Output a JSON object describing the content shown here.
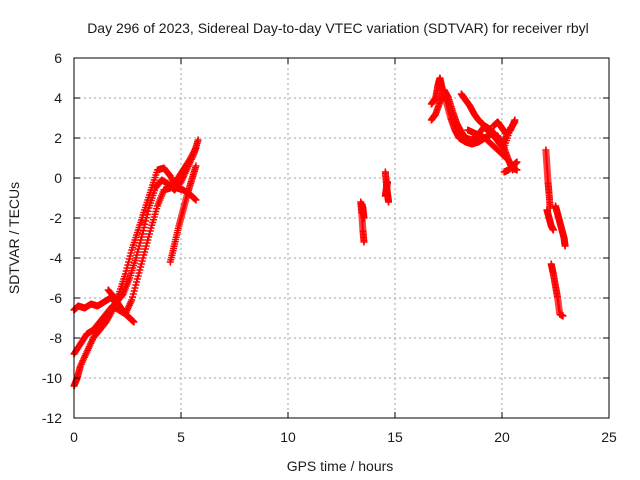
{
  "chart_data": {
    "type": "scatter",
    "title": "Day 296 of 2023, Sidereal Day-to-day VTEC variation (SDTVAR) for receiver rbyl",
    "xlabel": "GPS time / hours",
    "ylabel": "SDTVAR / TECUs",
    "xlim": [
      0,
      25
    ],
    "ylim": [
      -12,
      6
    ],
    "x_ticks": [
      "0",
      "5",
      "10",
      "15",
      "20",
      "25"
    ],
    "y_ticks": [
      "-12",
      "-10",
      "-8",
      "-6",
      "-4",
      "-2",
      "0",
      "2",
      "4",
      "6"
    ],
    "grid": true,
    "marker": "+",
    "series": [
      {
        "name": "SDTVAR",
        "color": "#ff0000",
        "tracks": [
          {
            "x": [
              0.0,
              0.2,
              0.5,
              0.8,
              1.1,
              1.4,
              1.7,
              2.0,
              2.3,
              2.6,
              2.9,
              3.2,
              3.5,
              3.8,
              4.1,
              4.4,
              4.7,
              5.0,
              5.3,
              5.6,
              5.8
            ],
            "y": [
              -6.6,
              -6.4,
              -6.5,
              -6.3,
              -6.4,
              -6.2,
              -6.0,
              -6.2,
              -5.8,
              -5.0,
              -4.0,
              -2.8,
              -1.5,
              -0.5,
              -0.1,
              -0.3,
              -0.6,
              -0.2,
              0.5,
              1.2,
              1.9
            ]
          },
          {
            "x": [
              0.0,
              0.15,
              0.3,
              0.6,
              0.9,
              1.2,
              1.5,
              1.8,
              2.1,
              2.4,
              2.7,
              3.0,
              3.3,
              3.6,
              3.9,
              4.2,
              4.5,
              4.8,
              5.1,
              5.4,
              5.7
            ],
            "y": [
              -10.4,
              -10.0,
              -9.4,
              -8.7,
              -8.0,
              -7.6,
              -7.2,
              -6.6,
              -5.8,
              -4.8,
              -3.6,
              -2.6,
              -1.6,
              -0.6,
              0.4,
              0.5,
              0.1,
              -0.5,
              -0.6,
              -0.8,
              -1.1
            ]
          },
          {
            "x": [
              0.0,
              0.3,
              0.6,
              0.9,
              1.2,
              1.5,
              1.8,
              2.1,
              2.4,
              2.7,
              3.0,
              3.3,
              3.6,
              3.9,
              4.2,
              4.5,
              4.8,
              5.1,
              5.4,
              5.7
            ],
            "y": [
              -8.8,
              -8.3,
              -7.8,
              -7.6,
              -7.2,
              -6.8,
              -6.4,
              -6.6,
              -6.8,
              -6.1,
              -4.9,
              -3.7,
              -2.5,
              -1.4,
              -0.6,
              -0.5,
              -0.1,
              0.4,
              0.9,
              1.5
            ]
          },
          {
            "x": [
              1.6,
              1.9,
              2.2,
              2.4,
              2.6,
              2.8
            ],
            "y": [
              -5.6,
              -6.0,
              -6.5,
              -6.8,
              -7.0,
              -7.2
            ]
          },
          {
            "x": [
              4.5,
              4.7,
              4.9,
              5.1,
              5.3,
              5.5,
              5.7
            ],
            "y": [
              -4.2,
              -3.3,
              -2.4,
              -1.6,
              -0.8,
              -0.1,
              0.6
            ]
          },
          {
            "x": [
              13.4,
              13.45,
              13.5,
              13.55
            ],
            "y": [
              -1.2,
              -1.8,
              -2.6,
              -3.2
            ]
          },
          {
            "x": [
              13.45,
              13.5,
              13.55
            ],
            "y": [
              -1.3,
              -1.5,
              -2.0
            ]
          },
          {
            "x": [
              14.55,
              14.6,
              14.65,
              14.7
            ],
            "y": [
              0.3,
              -0.3,
              -0.8,
              -1.2
            ]
          },
          {
            "x": [
              14.55,
              14.6,
              14.65
            ],
            "y": [
              -0.9,
              -0.5,
              -0.2
            ]
          },
          {
            "x": [
              16.7,
              16.9,
              17.0,
              17.1,
              17.2,
              17.4,
              17.6,
              17.8,
              18.0,
              18.3,
              18.6,
              18.9,
              19.2,
              19.5,
              19.8,
              20.0,
              20.3,
              20.6
            ],
            "y": [
              3.7,
              4.0,
              4.6,
              5.0,
              4.5,
              3.8,
              3.0,
              2.4,
              2.0,
              1.8,
              1.7,
              1.8,
              2.0,
              2.2,
              2.1,
              1.7,
              2.3,
              2.8
            ]
          },
          {
            "x": [
              16.7,
              16.9,
              17.1,
              17.3,
              17.5,
              17.7,
              17.9,
              18.1,
              18.3,
              18.6,
              18.9,
              19.2,
              19.5,
              19.8,
              20.1,
              20.4
            ],
            "y": [
              2.9,
              3.2,
              3.8,
              4.4,
              4.0,
              3.3,
              2.7,
              2.3,
              2.0,
              1.9,
              2.2,
              2.6,
              2.4,
              2.0,
              1.5,
              2.5
            ]
          },
          {
            "x": [
              18.1,
              18.3,
              18.5,
              18.7,
              18.9,
              19.1,
              19.3,
              19.5,
              19.7,
              19.9,
              20.1,
              20.3,
              20.5,
              20.7
            ],
            "y": [
              4.2,
              3.9,
              3.6,
              3.2,
              2.9,
              2.7,
              2.4,
              2.2,
              2.0,
              1.7,
              1.5,
              0.9,
              0.5,
              0.4
            ]
          },
          {
            "x": [
              18.4,
              18.8,
              19.2,
              19.6,
              20.0,
              20.3,
              20.5
            ],
            "y": [
              2.4,
              2.2,
              2.0,
              1.6,
              1.2,
              0.9,
              0.4
            ]
          },
          {
            "x": [
              19.6,
              19.8,
              20.0,
              20.2,
              20.4,
              20.6
            ],
            "y": [
              2.6,
              2.8,
              2.5,
              2.2,
              2.4,
              2.9
            ]
          },
          {
            "x": [
              20.1,
              20.3,
              20.5,
              20.7
            ],
            "y": [
              0.3,
              0.4,
              0.6,
              0.8
            ]
          },
          {
            "x": [
              22.05,
              22.1,
              22.15,
              22.2,
              22.25
            ],
            "y": [
              1.4,
              0.6,
              -0.2,
              -0.8,
              -1.5
            ]
          },
          {
            "x": [
              22.1,
              22.2,
              22.3,
              22.4
            ],
            "y": [
              -1.6,
              -2.0,
              -2.4,
              -2.6
            ]
          },
          {
            "x": [
              22.5,
              22.6,
              22.7,
              22.8,
              22.9,
              22.95
            ],
            "y": [
              -1.4,
              -1.8,
              -2.2,
              -2.6,
              -3.0,
              -3.4
            ]
          },
          {
            "x": [
              22.3,
              22.4,
              22.5,
              22.6,
              22.7,
              22.85
            ],
            "y": [
              -4.3,
              -4.8,
              -5.4,
              -6.0,
              -6.8,
              -6.9
            ]
          }
        ]
      }
    ]
  }
}
